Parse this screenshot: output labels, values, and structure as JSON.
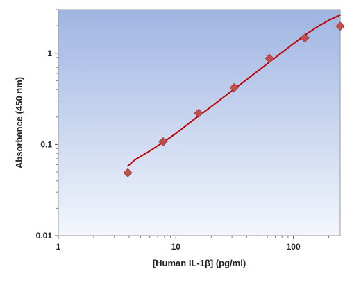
{
  "chart_data": {
    "type": "scatter",
    "title": "",
    "xlabel": "[Human IL-1β] (pg/ml)",
    "ylabel": "Absorbance (450 nm)",
    "xscale": "log",
    "yscale": "log",
    "xlim": [
      1,
      250
    ],
    "ylim": [
      0.01,
      3
    ],
    "x_ticks": [
      1,
      10,
      100
    ],
    "x_tick_labels": [
      "1",
      "10",
      "100"
    ],
    "y_ticks": [
      0.01,
      0.1,
      1
    ],
    "y_tick_labels": [
      "0.01",
      "0.1",
      "1"
    ],
    "grid": false,
    "legend": "none",
    "series": [
      {
        "type": "scatter",
        "marker": "diamond",
        "color": "#c0504d",
        "x": [
          3.9,
          7.8,
          15.6,
          31.3,
          62.5,
          125,
          250
        ],
        "y": [
          0.049,
          0.107,
          0.22,
          0.42,
          0.88,
          1.47,
          1.98
        ]
      },
      {
        "type": "line",
        "color": "#c00000",
        "x": [
          3.9,
          4.5,
          6,
          8,
          10,
          15,
          20,
          31.3,
          50,
          62.5,
          100,
          125,
          160,
          200,
          250
        ],
        "y": [
          0.058,
          0.068,
          0.085,
          0.108,
          0.132,
          0.198,
          0.26,
          0.405,
          0.64,
          0.8,
          1.27,
          1.58,
          1.95,
          2.3,
          2.62
        ]
      }
    ],
    "colors": {
      "plot_bg_top": "#9fb5e2",
      "plot_bg_bottom": "#f3f6fc",
      "marker": "#c0504d",
      "fit_line": "#c00000"
    }
  }
}
